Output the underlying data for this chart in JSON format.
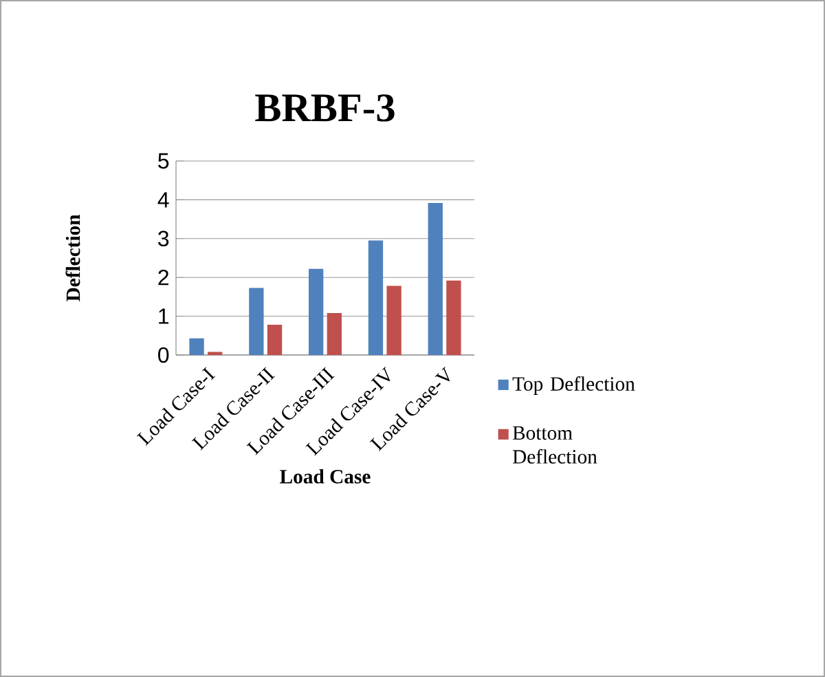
{
  "chart_data": {
    "type": "bar",
    "title": "BRBF-3",
    "xlabel": "Load Case",
    "ylabel": "Deflection",
    "categories": [
      "Load Case-I",
      "Load Case-II",
      "Load Case-III",
      "Load Case-IV",
      "Load Case-V"
    ],
    "series": [
      {
        "name": "Top Deflection",
        "color": "#4f81bd",
        "values": [
          0.43,
          1.73,
          2.22,
          2.95,
          3.92
        ]
      },
      {
        "name": "Bottom Deflection",
        "color": "#c0504d",
        "values": [
          0.08,
          0.78,
          1.08,
          1.78,
          1.92
        ]
      }
    ],
    "ylim": [
      0,
      5
    ],
    "yticks": [
      0,
      1,
      2,
      3,
      4,
      5
    ],
    "grid": "y",
    "legend": "right"
  }
}
